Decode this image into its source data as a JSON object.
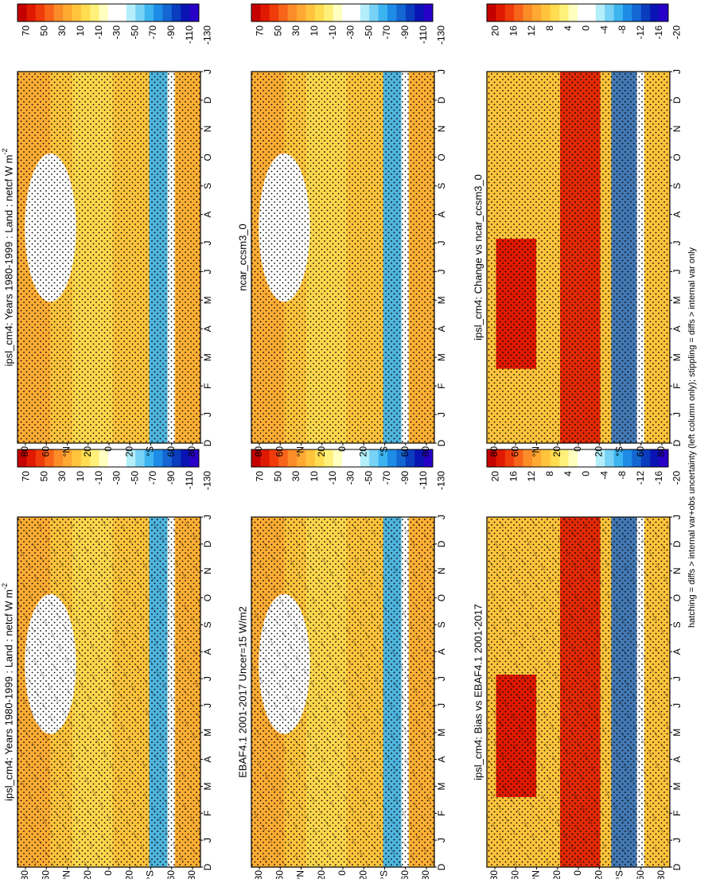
{
  "chart_data": {
    "type": "heatmap",
    "orientation": "rotated 90 degrees clockwise (portrait page of a landscape figure)",
    "footnote": "hatching = diffs > internal var+obs uncertainty (left column only); stippling = diffs > internal var only",
    "latitude_ticks": [
      "80",
      "60",
      "°N",
      "20",
      "0",
      "20",
      "°S",
      "60",
      "80"
    ],
    "month_ticks": [
      "D",
      "J",
      "F",
      "M",
      "A",
      "M",
      "J",
      "J",
      "A",
      "S",
      "O",
      "N",
      "D",
      "J"
    ],
    "colorbars": {
      "full": {
        "labels": [
          "70",
          "50",
          "30",
          "10",
          "-10",
          "-30",
          "-50",
          "-70",
          "-90",
          "-110",
          "-130"
        ],
        "colors": [
          "#c40000",
          "#e01a00",
          "#f03c0a",
          "#f8641a",
          "#fc8c28",
          "#ffa832",
          "#ffc43c",
          "#ffdc50",
          "#fff07a",
          "#ffffc0",
          "#ffffff",
          "#ffffff",
          "#b4eefa",
          "#78d2f5",
          "#3cb4f0",
          "#1e8ce6",
          "#1466d2",
          "#0a3cbe",
          "#0a14b4",
          "#2800c8"
        ]
      },
      "diff": {
        "labels": [
          "20",
          "16",
          "12",
          "8",
          "4",
          "0",
          "-4",
          "-8",
          "-12",
          "-16",
          "-20"
        ],
        "colors": [
          "#c40000",
          "#e01a00",
          "#f03c0a",
          "#f8641a",
          "#fc8c28",
          "#ffa832",
          "#ffc43c",
          "#ffdc50",
          "#fff07a",
          "#ffffc0",
          "#ffffff",
          "#ffffff",
          "#b4eefa",
          "#78d2f5",
          "#3cb4f0",
          "#1e8ce6",
          "#1466d2",
          "#0a3cbe",
          "#0a14b4",
          "#2800c8"
        ]
      }
    },
    "panels": [
      {
        "id": "top-left",
        "title": "ipsl_cm4: Years 1980-1999 : Land : netcf W m",
        "superscript": "-2",
        "colorbar": "full",
        "hatching": true
      },
      {
        "id": "top-right",
        "title": "ipsl_cm4: Years 1980-1999 : Land : netcf W m",
        "superscript": "-2",
        "colorbar": "full",
        "hatching": false
      },
      {
        "id": "middle-left",
        "title": "EBAF4.1 2001-2017 Uncer=15 W/m2",
        "superscript": "",
        "colorbar": "full",
        "hatching": true
      },
      {
        "id": "middle-right",
        "title": "ncar_ccsm3_0",
        "superscript": "",
        "colorbar": "full",
        "hatching": false
      },
      {
        "id": "bottom-left",
        "title": "ipsl_cm4: Bias vs EBAF4.1 2001-2017",
        "superscript": "",
        "colorbar": "diff",
        "hatching": true
      },
      {
        "id": "bottom-right",
        "title": "ipsl_cm4: Change vs ncar_ccsm3_0",
        "superscript": "",
        "colorbar": "diff",
        "hatching": false
      }
    ]
  }
}
